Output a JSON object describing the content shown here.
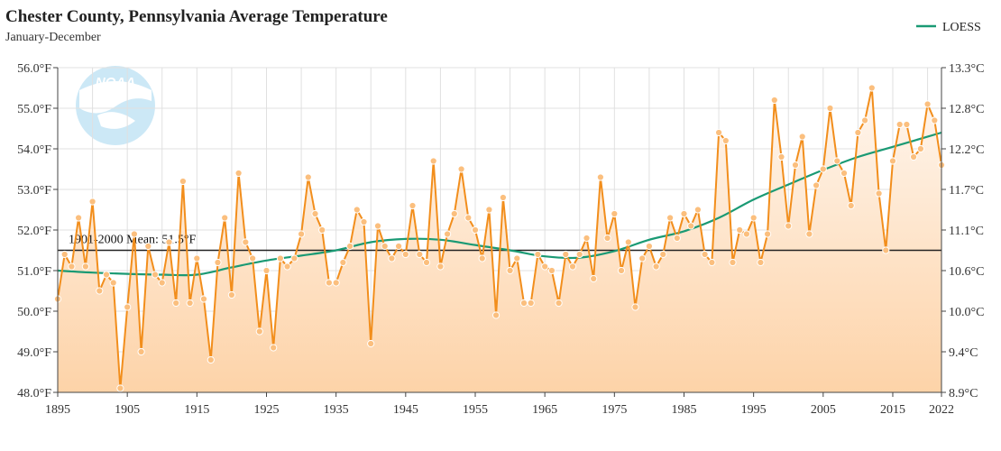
{
  "title": "Chester County, Pennsylvania Average Temperature",
  "subtitle": "January-December",
  "legend": {
    "label": "LOESS"
  },
  "mean_label": "1901-2000 Mean: 51.5°F",
  "colors": {
    "series": "#f28e1c",
    "loess": "#1a9a74",
    "mean": "#222222",
    "fill_top": "#fff6ee",
    "fill_bottom": "#fdd3a8",
    "grid": "#e0e0e0",
    "logo": "#c7e6f6"
  },
  "logo_text": "NOAA",
  "logo_icon": "noaa-logo-icon",
  "chart_data": {
    "type": "line",
    "x_start": 1895,
    "x_end": 2022,
    "ylim": [
      48,
      56
    ],
    "y_ticks": [
      48,
      49,
      50,
      51,
      52,
      53,
      54,
      55,
      56
    ],
    "y_tick_labels": [
      "48.0°F",
      "49.0°F",
      "50.0°F",
      "51.0°F",
      "52.0°F",
      "53.0°F",
      "54.0°F",
      "55.0°F",
      "56.0°F"
    ],
    "y2_tick_labels": [
      "8.9°C",
      "9.4°C",
      "10.0°C",
      "10.6°C",
      "11.1°C",
      "11.7°C",
      "12.2°C",
      "12.8°C",
      "13.3°C"
    ],
    "x_ticks": [
      1895,
      1905,
      1915,
      1925,
      1935,
      1945,
      1955,
      1965,
      1975,
      1985,
      1995,
      2005,
      2015,
      2022
    ],
    "mean": 51.5,
    "series": [
      {
        "name": "Average Temperature",
        "values": [
          50.3,
          51.4,
          51.1,
          52.3,
          51.1,
          52.7,
          50.5,
          50.9,
          50.7,
          48.1,
          50.1,
          51.9,
          49.0,
          51.6,
          50.9,
          50.7,
          51.7,
          50.2,
          53.2,
          50.2,
          51.3,
          50.3,
          48.8,
          51.2,
          52.3,
          50.4,
          53.4,
          51.7,
          51.3,
          49.5,
          51.0,
          49.1,
          51.3,
          51.1,
          51.3,
          51.9,
          53.3,
          52.4,
          52.0,
          50.7,
          50.7,
          51.2,
          51.6,
          52.5,
          52.2,
          49.2,
          52.1,
          51.6,
          51.3,
          51.6,
          51.4,
          52.6,
          51.4,
          51.2,
          53.7,
          51.1,
          51.9,
          52.4,
          53.5,
          52.3,
          52.0,
          51.3,
          52.5,
          49.9,
          52.8,
          51.0,
          51.3,
          50.2,
          50.2,
          51.4,
          51.1,
          51.0,
          50.2,
          51.4,
          51.1,
          51.4,
          51.8,
          50.8,
          53.3,
          51.8,
          52.4,
          51.0,
          51.7,
          50.1,
          51.3,
          51.6,
          51.1,
          51.4,
          52.3,
          51.8,
          52.4,
          52.1,
          52.5,
          51.4,
          51.2,
          54.4,
          54.2,
          51.2,
          52.0,
          51.9,
          52.3,
          51.2,
          51.9,
          55.2,
          53.8,
          52.1,
          53.6,
          54.3,
          51.9,
          53.1,
          53.5,
          55.0,
          53.7,
          53.4,
          52.6,
          54.4,
          54.7,
          55.5,
          52.9,
          51.5,
          53.7,
          54.6,
          54.6,
          53.8,
          54.0,
          55.1,
          54.7,
          53.6
        ]
      },
      {
        "name": "LOESS",
        "years": [
          1895,
          1900,
          1905,
          1910,
          1915,
          1920,
          1925,
          1930,
          1935,
          1940,
          1945,
          1950,
          1955,
          1960,
          1965,
          1970,
          1975,
          1980,
          1985,
          1990,
          1995,
          2000,
          2005,
          2010,
          2015,
          2022
        ],
        "values": [
          51.0,
          50.95,
          50.92,
          50.9,
          50.9,
          51.08,
          51.25,
          51.37,
          51.5,
          51.7,
          51.78,
          51.76,
          51.63,
          51.5,
          51.35,
          51.32,
          51.48,
          51.76,
          51.97,
          52.3,
          52.75,
          53.12,
          53.48,
          53.8,
          54.05,
          54.4
        ]
      }
    ]
  }
}
